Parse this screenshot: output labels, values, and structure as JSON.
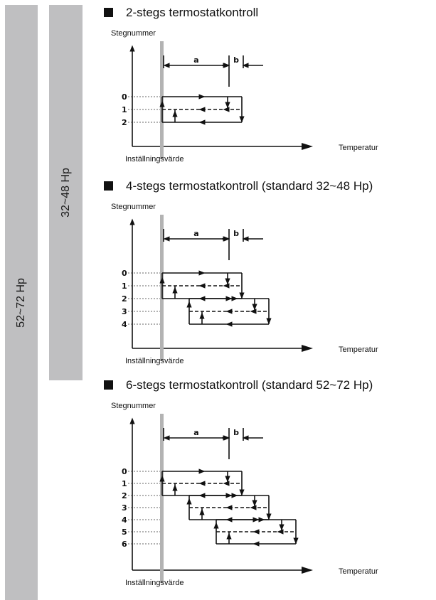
{
  "side_bars": [
    {
      "label": "52~72 Hp"
    },
    {
      "label": "32~48 Hp"
    }
  ],
  "sections": [
    {
      "title": "2-stegs termostatkontroll",
      "y_axis_label": "Stegnummer",
      "x_axis_label": "Temperatur",
      "setpoint_label": "Inställningsvärde",
      "dim_a": "a",
      "dim_b": "b",
      "steps": [
        "0",
        "1",
        "2"
      ]
    },
    {
      "title": "4-stegs termostatkontroll (standard 32~48 Hp)",
      "y_axis_label": "Stegnummer",
      "x_axis_label": "Temperatur",
      "setpoint_label": "Inställningsvärde",
      "dim_a": "a",
      "dim_b": "b",
      "steps": [
        "0",
        "1",
        "2",
        "3",
        "4"
      ]
    },
    {
      "title": "6-stegs termostatkontroll (standard 52~72 Hp)",
      "y_axis_label": "Stegnummer",
      "x_axis_label": "Temperatur",
      "setpoint_label": "Inställningsvärde",
      "dim_a": "a",
      "dim_b": "b",
      "steps": [
        "0",
        "1",
        "2",
        "3",
        "4",
        "5",
        "6"
      ]
    }
  ]
}
